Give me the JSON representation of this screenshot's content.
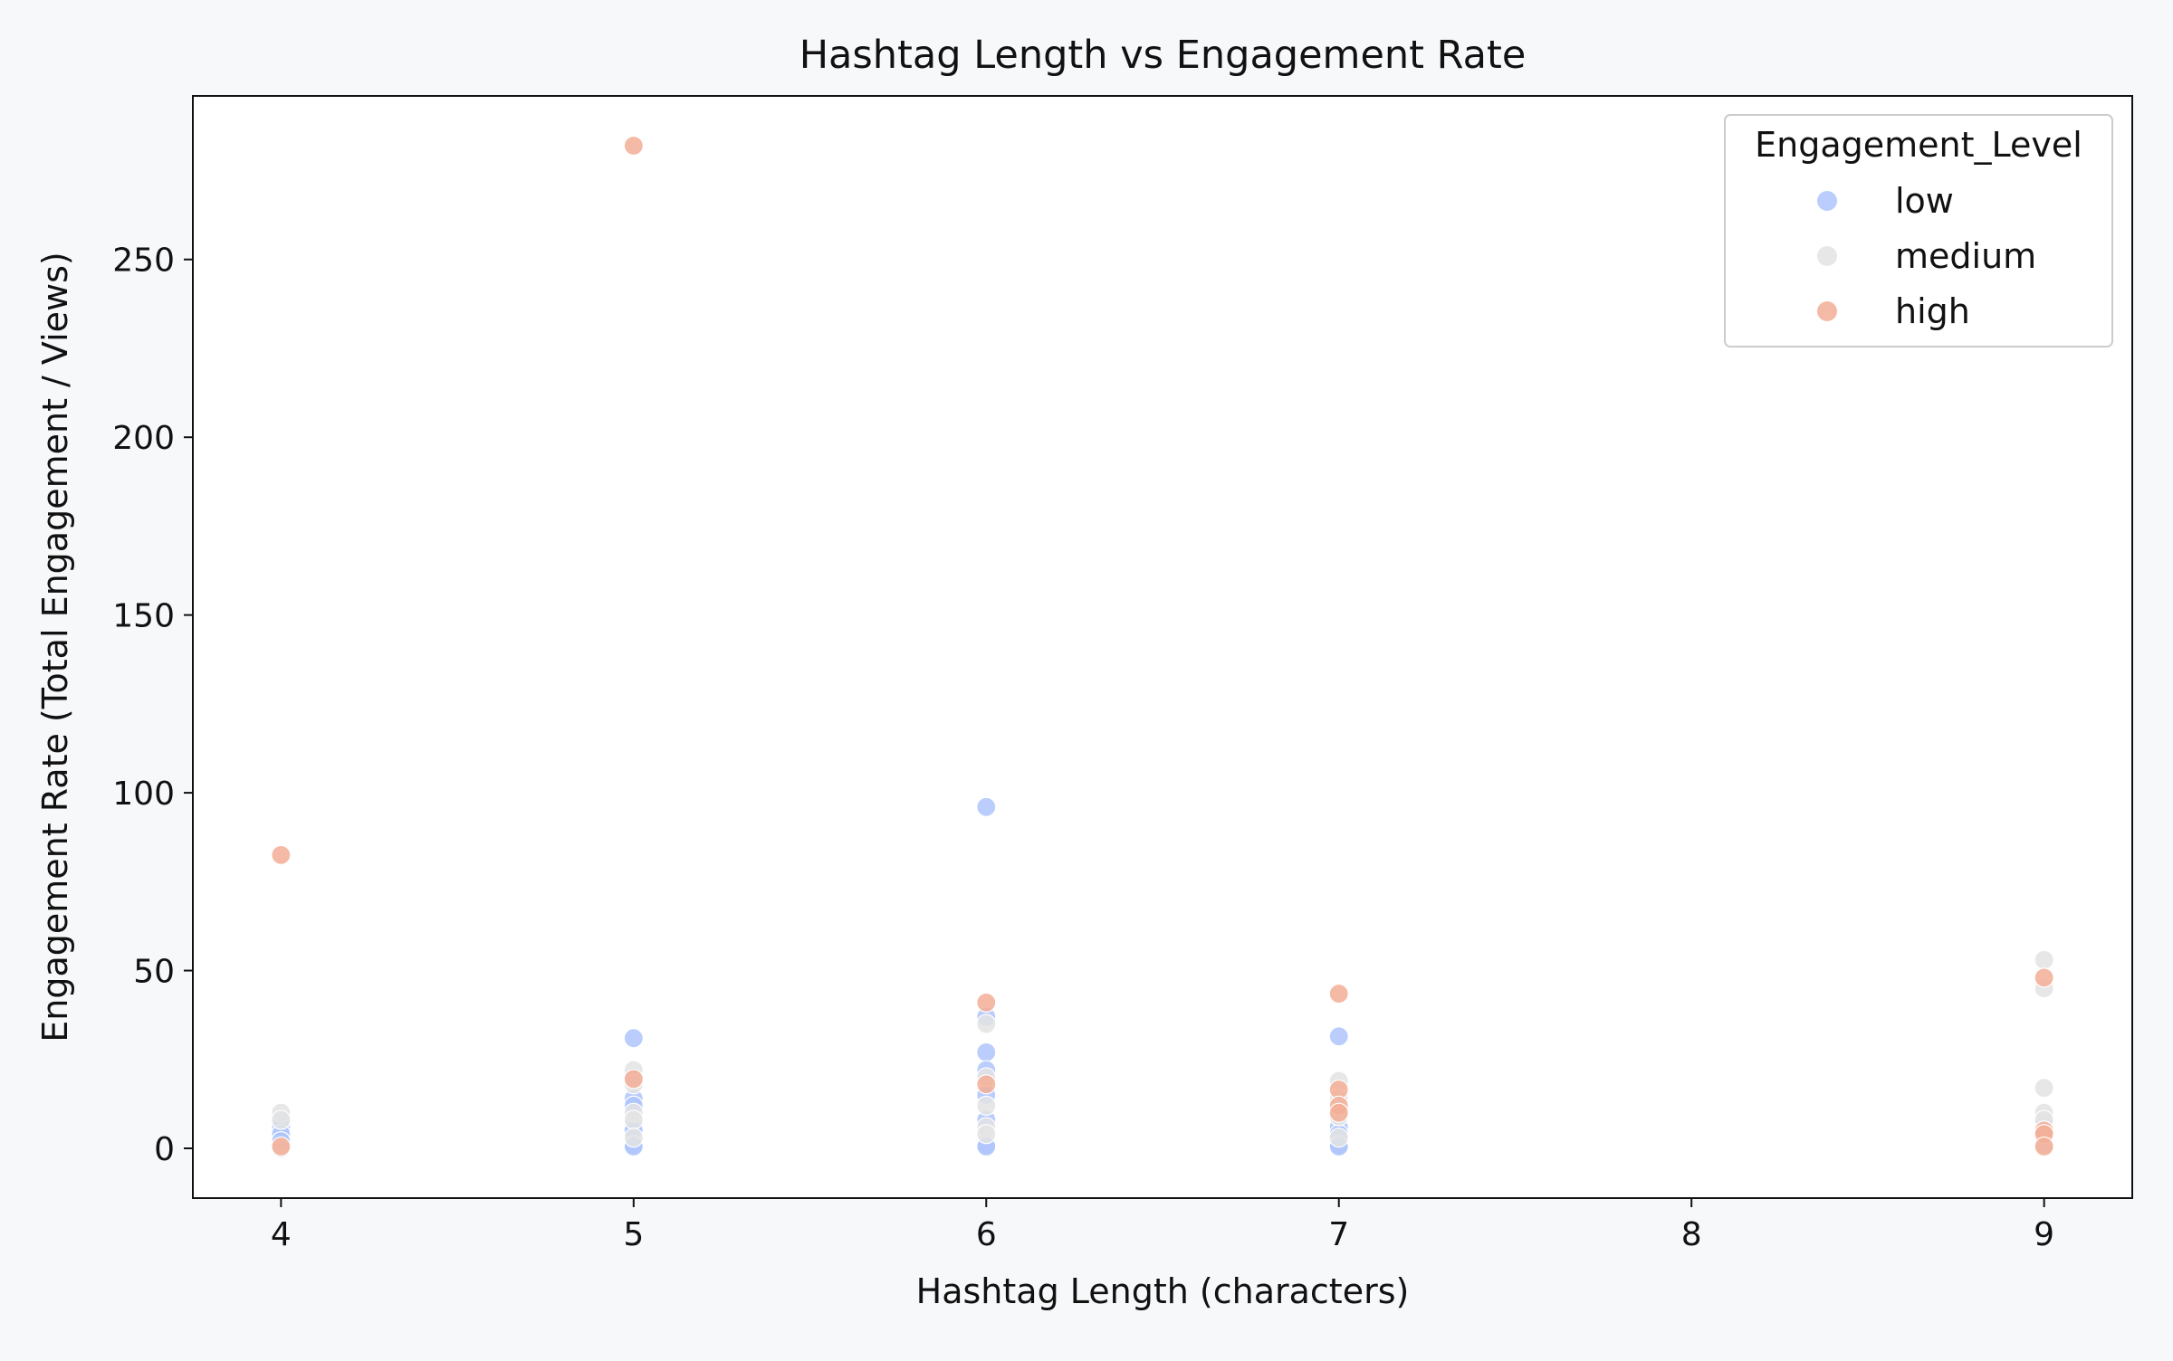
{
  "chart_data": {
    "type": "scatter",
    "title": "Hashtag Length vs Engagement Rate",
    "xlabel": "Hashtag Length (characters)",
    "ylabel": "Engagement Rate (Total Engagement / Views)",
    "xlim": [
      3.75,
      9.25
    ],
    "ylim": [
      -14,
      296
    ],
    "xticks": [
      4,
      5,
      6,
      7,
      8,
      9
    ],
    "yticks": [
      0,
      50,
      100,
      150,
      200,
      250
    ],
    "grid": false,
    "legend": {
      "title": "Engagement_Level",
      "position": "top-right"
    },
    "colors": {
      "low": "#aec4fc",
      "medium": "#e3e3e3",
      "high": "#f3ae96"
    },
    "series": [
      {
        "name": "low",
        "points": [
          {
            "x": 4,
            "y": 8
          },
          {
            "x": 4,
            "y": 6
          },
          {
            "x": 4,
            "y": 4
          },
          {
            "x": 4,
            "y": 2
          },
          {
            "x": 5,
            "y": 31
          },
          {
            "x": 5,
            "y": 20
          },
          {
            "x": 5,
            "y": 14
          },
          {
            "x": 5,
            "y": 12
          },
          {
            "x": 5,
            "y": 6
          },
          {
            "x": 5,
            "y": 5
          },
          {
            "x": 5,
            "y": 1
          },
          {
            "x": 5,
            "y": 0.5
          },
          {
            "x": 6,
            "y": 96
          },
          {
            "x": 6,
            "y": 37
          },
          {
            "x": 6,
            "y": 27
          },
          {
            "x": 6,
            "y": 22
          },
          {
            "x": 6,
            "y": 15
          },
          {
            "x": 6,
            "y": 8
          },
          {
            "x": 6,
            "y": 1
          },
          {
            "x": 6,
            "y": 0.5
          },
          {
            "x": 7,
            "y": 31.5
          },
          {
            "x": 7,
            "y": 6
          },
          {
            "x": 7,
            "y": 4
          },
          {
            "x": 7,
            "y": 1
          },
          {
            "x": 7,
            "y": 0.5
          },
          {
            "x": 9,
            "y": 7
          },
          {
            "x": 9,
            "y": 5
          },
          {
            "x": 9,
            "y": 1
          }
        ]
      },
      {
        "name": "medium",
        "points": [
          {
            "x": 4,
            "y": 10
          },
          {
            "x": 4,
            "y": 8
          },
          {
            "x": 4,
            "y": 0
          },
          {
            "x": 5,
            "y": 22
          },
          {
            "x": 5,
            "y": 18
          },
          {
            "x": 5,
            "y": 10
          },
          {
            "x": 5,
            "y": 8
          },
          {
            "x": 5,
            "y": 3
          },
          {
            "x": 6,
            "y": 35
          },
          {
            "x": 6,
            "y": 20
          },
          {
            "x": 6,
            "y": 12
          },
          {
            "x": 6,
            "y": 6
          },
          {
            "x": 6,
            "y": 4
          },
          {
            "x": 7,
            "y": 19
          },
          {
            "x": 7,
            "y": 14
          },
          {
            "x": 7,
            "y": 9
          },
          {
            "x": 7,
            "y": 3
          },
          {
            "x": 9,
            "y": 53
          },
          {
            "x": 9,
            "y": 45
          },
          {
            "x": 9,
            "y": 17
          },
          {
            "x": 9,
            "y": 10
          },
          {
            "x": 9,
            "y": 8
          },
          {
            "x": 9,
            "y": 1
          }
        ]
      },
      {
        "name": "high",
        "points": [
          {
            "x": 4,
            "y": 82.5
          },
          {
            "x": 4,
            "y": 0.5
          },
          {
            "x": 5,
            "y": 282
          },
          {
            "x": 5,
            "y": 19.5
          },
          {
            "x": 6,
            "y": 41
          },
          {
            "x": 6,
            "y": 18
          },
          {
            "x": 7,
            "y": 43.5
          },
          {
            "x": 7,
            "y": 16.5
          },
          {
            "x": 7,
            "y": 12
          },
          {
            "x": 7,
            "y": 10
          },
          {
            "x": 9,
            "y": 48
          },
          {
            "x": 9,
            "y": 5
          },
          {
            "x": 9,
            "y": 4
          },
          {
            "x": 9,
            "y": 0.5
          }
        ]
      }
    ]
  }
}
